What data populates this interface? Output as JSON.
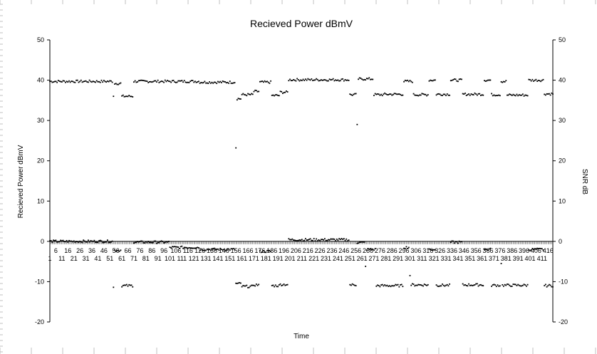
{
  "chart_data": {
    "type": "scatter",
    "title": "Recieved Power dBmV",
    "xlabel": "Time",
    "ylabel": "Recieved Power dBmV",
    "y2label": "SNR dB",
    "ylim": [
      -20,
      50
    ],
    "y2lim": [
      -20,
      50
    ],
    "yticks": [
      -20,
      -10,
      0,
      10,
      20,
      30,
      40,
      50
    ],
    "xlim": [
      1,
      420
    ],
    "x_tick_labels_upper": [
      6,
      16,
      26,
      36,
      46,
      56,
      66,
      76,
      86,
      96,
      106,
      116,
      126,
      136,
      146,
      156,
      166,
      176,
      186,
      196,
      206,
      216,
      226,
      236,
      246,
      256,
      266,
      276,
      286,
      296,
      306,
      316,
      326,
      336,
      346,
      356,
      366,
      376,
      386,
      396,
      406,
      416
    ],
    "x_tick_labels_lower": [
      1,
      11,
      21,
      31,
      41,
      51,
      61,
      71,
      81,
      91,
      101,
      111,
      121,
      131,
      141,
      151,
      161,
      171,
      181,
      191,
      201,
      211,
      221,
      231,
      241,
      251,
      261,
      271,
      281,
      291,
      301,
      311,
      321,
      331,
      341,
      351,
      361,
      371,
      381,
      391,
      401,
      411
    ],
    "series_note": "",
    "series": [
      {
        "name": "",
        "segments": [
          {
            "x": [
              1,
              53
            ],
            "y": 39.7
          },
          {
            "x": 54,
            "y": 36.0
          },
          {
            "x": [
              55,
              60
            ],
            "y": 39.2
          },
          {
            "x": [
              61,
              70
            ],
            "y": 36.0
          },
          {
            "x": [
              71,
              125
            ],
            "y": 39.7
          },
          {
            "x": [
              126,
              155
            ],
            "y": 39.5
          },
          {
            "x": 156,
            "y": 23.2
          },
          {
            "x": [
              157,
              160
            ],
            "y": 35.4
          },
          {
            "x": [
              161,
              170
            ],
            "y": 36.4
          },
          {
            "x": [
              171,
              175
            ],
            "y": 37.2
          },
          {
            "x": [
              176,
              185
            ],
            "y": 39.5
          },
          {
            "x": [
              186,
              192
            ],
            "y": 36.2
          },
          {
            "x": [
              193,
              199
            ],
            "y": 37.0
          },
          {
            "x": [
              200,
              250
            ],
            "y": 40.1
          },
          {
            "x": [
              251,
              256
            ],
            "y": 36.4
          },
          {
            "x": 257,
            "y": 29.0
          },
          {
            "x": [
              258,
              270
            ],
            "y": 40.3
          },
          {
            "x": [
              271,
              279
            ],
            "y": 36.4
          },
          {
            "x": [
              280,
              295
            ],
            "y": 36.5
          },
          {
            "x": [
              296,
              303
            ],
            "y": 39.7
          },
          {
            "x": [
              304,
              316
            ],
            "y": 36.4
          },
          {
            "x": [
              317,
              322
            ],
            "y": 40.0
          },
          {
            "x": [
              323,
              334
            ],
            "y": 36.5
          },
          {
            "x": [
              335,
              344
            ],
            "y": 40.0
          },
          {
            "x": [
              345,
              362
            ],
            "y": 36.5
          },
          {
            "x": [
              363,
              368
            ],
            "y": 40.0
          },
          {
            "x": [
              369,
              376
            ],
            "y": 36.4
          },
          {
            "x": [
              377,
              381
            ],
            "y": 39.7
          },
          {
            "x": [
              382,
              399
            ],
            "y": 36.3
          },
          {
            "x": [
              400,
              412
            ],
            "y": 40.0
          },
          {
            "x": [
              413,
              420
            ],
            "y": 36.6
          }
        ]
      },
      {
        "name": "",
        "segments": [
          {
            "x": [
              1,
              53
            ],
            "y": 0.0
          },
          {
            "x": 54,
            "y": -11.4
          },
          {
            "x": [
              55,
              60
            ],
            "y": -2.2
          },
          {
            "x": [
              61,
              70
            ],
            "y": -11.0
          },
          {
            "x": [
              71,
              100
            ],
            "y": -0.2
          },
          {
            "x": [
              101,
              125
            ],
            "y": -1.5
          },
          {
            "x": [
              126,
              155
            ],
            "y": -2.0
          },
          {
            "x": [
              156,
              160
            ],
            "y": -10.5
          },
          {
            "x": [
              161,
              170
            ],
            "y": -11.2
          },
          {
            "x": [
              171,
              175
            ],
            "y": -10.8
          },
          {
            "x": [
              176,
              185
            ],
            "y": -2.5
          },
          {
            "x": [
              186,
              192
            ],
            "y": -11.0
          },
          {
            "x": [
              193,
              199
            ],
            "y": -10.7
          },
          {
            "x": [
              200,
              250
            ],
            "y": 0.4
          },
          {
            "x": [
              251,
              256
            ],
            "y": -10.8
          },
          {
            "x": [
              257,
              263
            ],
            "y": -0.3
          },
          {
            "x": 264,
            "y": -6.2
          },
          {
            "x": [
              265,
              272
            ],
            "y": -2.0
          },
          {
            "x": [
              273,
              295
            ],
            "y": -11.0
          },
          {
            "x": [
              296,
              300
            ],
            "y": -1.5
          },
          {
            "x": 301,
            "y": -8.5
          },
          {
            "x": [
              302,
              316
            ],
            "y": -10.8
          },
          {
            "x": [
              317,
              322
            ],
            "y": -2.0
          },
          {
            "x": [
              323,
              334
            ],
            "y": -10.9
          },
          {
            "x": [
              335,
              344
            ],
            "y": -0.2
          },
          {
            "x": [
              345,
              362
            ],
            "y": -10.8
          },
          {
            "x": [
              363,
              368
            ],
            "y": -2.0
          },
          {
            "x": [
              369,
              376
            ],
            "y": -10.9
          },
          {
            "x": 377,
            "y": -5.5
          },
          {
            "x": [
              378,
              399
            ],
            "y": -10.9
          },
          {
            "x": [
              400,
              412
            ],
            "y": -2.0
          },
          {
            "x": [
              413,
              420
            ],
            "y": -11.0
          }
        ]
      }
    ],
    "grid": false,
    "legend": "none",
    "colors": {
      "marker": "#000000",
      "axis": "#000000",
      "frame": "#808080"
    }
  }
}
